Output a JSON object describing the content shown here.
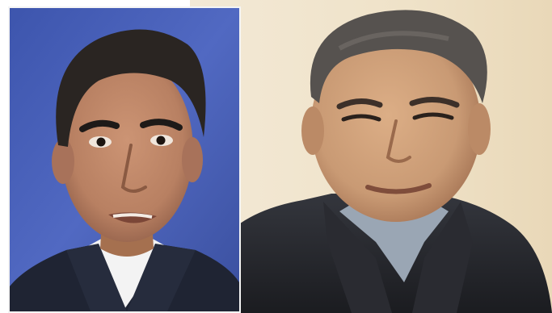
{
  "image": {
    "kind": "press photo collage",
    "panels": [
      {
        "id": "left",
        "subject": "portrait-man-dark-hair",
        "background_color": "#4a62b8",
        "suit_color": "#1f2433",
        "shirt_color": "#f3f3f3",
        "skin_color": "#b88062",
        "hair_color": "#2a2522"
      },
      {
        "id": "right",
        "subject": "portrait-man-grey-hair",
        "background_color": "#efe2c8",
        "coat_color": "#24252a",
        "shirt_color": "#9aa6b4",
        "skin_color": "#c99a74",
        "hair_color": "#56524f"
      }
    ]
  }
}
